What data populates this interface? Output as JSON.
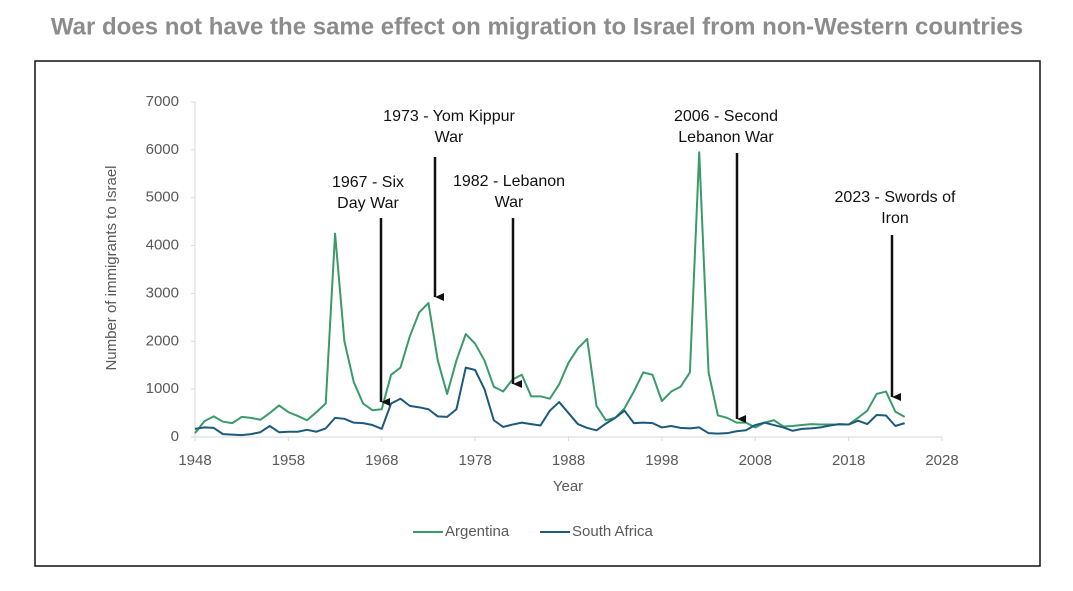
{
  "chart_data": {
    "type": "line",
    "title": "War does not have the same effect on migration to Israel from non-Western countries",
    "xlabel": "Year",
    "ylabel": "Number of immigrants to Israel",
    "x": [
      1948,
      1949,
      1950,
      1951,
      1952,
      1953,
      1954,
      1955,
      1956,
      1957,
      1958,
      1959,
      1960,
      1961,
      1962,
      1963,
      1964,
      1965,
      1966,
      1967,
      1968,
      1969,
      1970,
      1971,
      1972,
      1973,
      1974,
      1975,
      1976,
      1977,
      1978,
      1979,
      1980,
      1981,
      1982,
      1983,
      1984,
      1985,
      1986,
      1987,
      1988,
      1989,
      1990,
      1991,
      1992,
      1993,
      1994,
      1995,
      1996,
      1997,
      1998,
      1999,
      2000,
      2001,
      2002,
      2003,
      2004,
      2005,
      2006,
      2007,
      2008,
      2009,
      2010,
      2011,
      2012,
      2013,
      2014,
      2015,
      2016,
      2017,
      2018,
      2019,
      2020,
      2021,
      2022,
      2023,
      2024
    ],
    "series": [
      {
        "name": "Argentina",
        "color": "#3a9a6a",
        "values": [
          80,
          330,
          430,
          320,
          290,
          420,
          400,
          360,
          500,
          660,
          520,
          440,
          350,
          520,
          700,
          4250,
          2000,
          1150,
          700,
          560,
          580,
          1300,
          1450,
          2100,
          2600,
          2800,
          1600,
          900,
          1600,
          2150,
          1950,
          1600,
          1050,
          950,
          1200,
          1300,
          850,
          850,
          800,
          1100,
          1550,
          1850,
          2050,
          650,
          350,
          400,
          600,
          950,
          1350,
          1300,
          750,
          950,
          1050,
          1350,
          5950,
          1350,
          450,
          400,
          300,
          300,
          200,
          300,
          350,
          220,
          230,
          250,
          270,
          260,
          260,
          260,
          260,
          400,
          550,
          900,
          950,
          530,
          420
        ]
      },
      {
        "name": "South Africa",
        "color": "#1c5a7d",
        "values": [
          170,
          200,
          190,
          60,
          50,
          40,
          60,
          100,
          230,
          100,
          110,
          110,
          150,
          110,
          180,
          400,
          380,
          300,
          290,
          250,
          170,
          700,
          800,
          650,
          620,
          580,
          430,
          420,
          580,
          1450,
          1400,
          1000,
          350,
          210,
          260,
          300,
          270,
          240,
          550,
          730,
          500,
          270,
          190,
          140,
          280,
          400,
          550,
          290,
          300,
          290,
          200,
          230,
          190,
          180,
          200,
          80,
          70,
          80,
          120,
          140,
          250,
          300,
          250,
          200,
          130,
          170,
          180,
          200,
          240,
          270,
          260,
          340,
          270,
          460,
          450,
          230,
          290
        ]
      }
    ],
    "xlim": [
      1948,
      2028
    ],
    "xticks": [
      1948,
      1958,
      1968,
      1978,
      1988,
      1998,
      2008,
      2018,
      2028
    ],
    "ylim": [
      0,
      7000
    ],
    "yticks": [
      0,
      1000,
      2000,
      3000,
      4000,
      5000,
      6000,
      7000
    ],
    "grid": false,
    "legend": "bottom",
    "annotations": [
      {
        "lines": [
          "1967 - Six",
          "Day War"
        ]
      },
      {
        "lines": [
          "1973 - Yom Kippur",
          "War"
        ]
      },
      {
        "lines": [
          "1982 - Lebanon",
          "War"
        ]
      },
      {
        "lines": [
          "2006 - Second",
          "Lebanon War"
        ]
      },
      {
        "lines": [
          "2023 - Swords of",
          "Iron"
        ]
      }
    ]
  }
}
